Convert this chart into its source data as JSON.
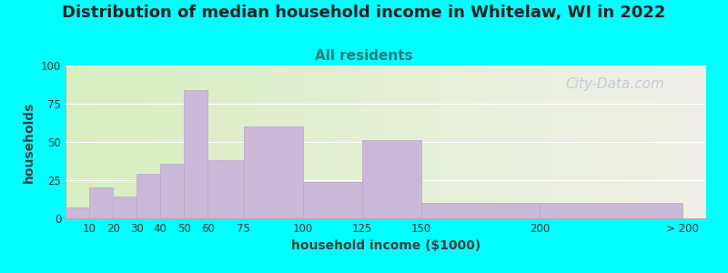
{
  "title": "Distribution of median household income in Whitelaw, WI in 2022",
  "subtitle": "All residents",
  "xlabel": "household income ($1000)",
  "ylabel": "households",
  "bar_lefts": [
    0,
    10,
    20,
    30,
    40,
    50,
    60,
    75,
    100,
    125,
    150,
    200
  ],
  "bar_widths": [
    10,
    10,
    10,
    10,
    10,
    10,
    15,
    25,
    25,
    25,
    50,
    60
  ],
  "bar_values": [
    7,
    20,
    14,
    29,
    36,
    84,
    38,
    60,
    24,
    51,
    10,
    10
  ],
  "xtick_positions": [
    10,
    20,
    30,
    40,
    50,
    60,
    75,
    100,
    125,
    150,
    200,
    260
  ],
  "xtick_labels": [
    "10",
    "20",
    "30",
    "40",
    "50",
    "60",
    "75",
    "100",
    "125",
    "150",
    "200",
    "> 200"
  ],
  "xlim": [
    0,
    270
  ],
  "bar_color": "#c9b8d8",
  "bar_edgecolor": "#b8a8c8",
  "ylim": [
    0,
    100
  ],
  "yticks": [
    0,
    25,
    50,
    75,
    100
  ],
  "bg_color_left": "#d8eec0",
  "bg_color_right": "#f0f0e8",
  "outer_bg": "#00ffff",
  "title_fontsize": 13,
  "title_color": "#222222",
  "subtitle_fontsize": 11,
  "subtitle_color": "#2a7a7a",
  "axis_label_fontsize": 10,
  "axis_label_color": "#404040",
  "tick_fontsize": 8.5,
  "watermark_text": "City-Data.com",
  "watermark_color": "#c0c8d0",
  "watermark_fontsize": 11
}
